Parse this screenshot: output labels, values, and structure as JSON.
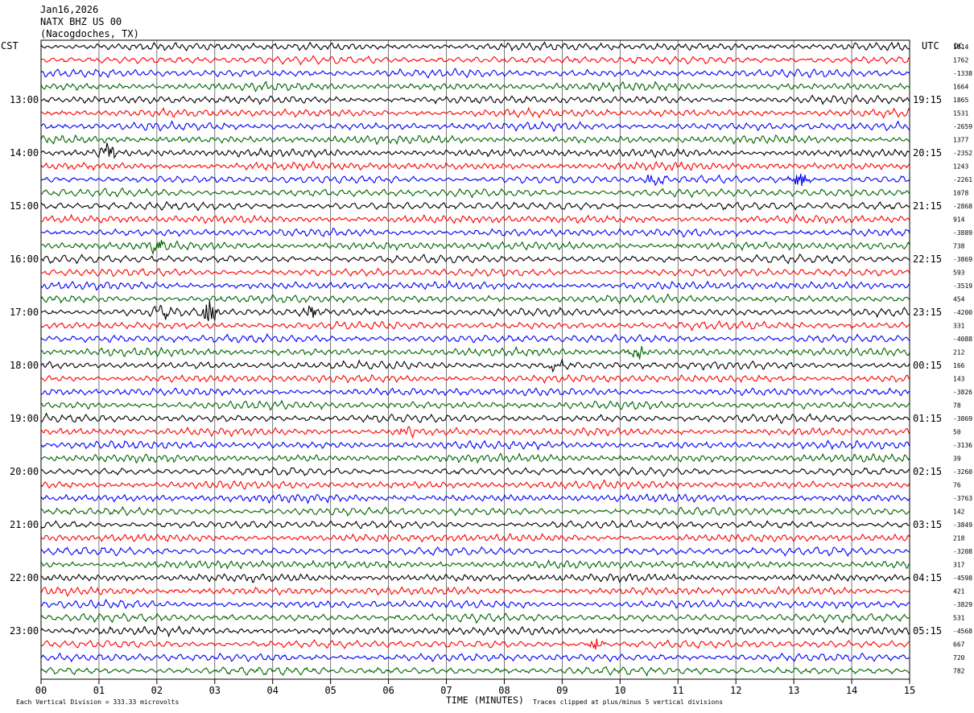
{
  "header": {
    "date": "Jan16,2026",
    "station": "NATX BHZ US 00",
    "location": "(Nacogdoches, TX)"
  },
  "chart_data": {
    "type": "line",
    "title": "",
    "left_axis_label": "CST",
    "right_axis_label": "UTC",
    "dc_label": "DC",
    "xlabel": "TIME (MINUTES)",
    "xlim": [
      0,
      15
    ],
    "x_ticks": [
      "00",
      "01",
      "02",
      "03",
      "04",
      "05",
      "06",
      "07",
      "08",
      "09",
      "10",
      "11",
      "12",
      "13",
      "14",
      "15"
    ],
    "grid": true,
    "trace_count": 48,
    "trace_colors": [
      "#000000",
      "#ff0000",
      "#0000ff",
      "#006400"
    ],
    "cst_hour_labels": [
      "13:00",
      "14:00",
      "15:00",
      "16:00",
      "17:00",
      "18:00",
      "19:00",
      "20:00",
      "21:00",
      "22:00",
      "23:00"
    ],
    "utc_hour_labels": [
      "19:15",
      "20:15",
      "21:15",
      "22:15",
      "23:15",
      "00:15",
      "01:15",
      "02:15",
      "03:15",
      "04:15",
      "05:15"
    ],
    "dc_offsets": [
      "1814",
      "1762",
      "-1338",
      "1664",
      "1865",
      "1531",
      "-2659",
      "1377",
      "-2352",
      "1243",
      "-2261",
      "1078",
      "-2868",
      "914",
      "-3889",
      "738",
      "-3869",
      "593",
      "-3519",
      "454",
      "-4200",
      "331",
      "-4088",
      "212",
      "166",
      "143",
      "-3826",
      "78",
      "-3869",
      "50",
      "-3136",
      "39",
      "-3260",
      "76",
      "-3763",
      "142",
      "-3849",
      "218",
      "-3208",
      "317",
      "-4598",
      "421",
      "-3829",
      "531",
      "-4568",
      "667",
      "720",
      "782"
    ],
    "events": [
      {
        "trace": 8,
        "minute": 1.15,
        "amplitude": 9
      },
      {
        "trace": 10,
        "minute": 10.6,
        "amplitude": 7
      },
      {
        "trace": 10,
        "minute": 13.1,
        "amplitude": 6
      },
      {
        "trace": 15,
        "minute": 2.0,
        "amplitude": 6
      },
      {
        "trace": 20,
        "minute": 2.1,
        "amplitude": 7
      },
      {
        "trace": 20,
        "minute": 2.9,
        "amplitude": 11
      },
      {
        "trace": 20,
        "minute": 4.7,
        "amplitude": 6
      },
      {
        "trace": 23,
        "minute": 10.3,
        "amplitude": 6
      },
      {
        "trace": 24,
        "minute": 8.9,
        "amplitude": 6
      },
      {
        "trace": 29,
        "minute": 6.3,
        "amplitude": 5
      },
      {
        "trace": 45,
        "minute": 9.6,
        "amplitude": 5
      }
    ],
    "footer_left": "Each Vertical Division =  333.33 microvolts",
    "footer_right": "Traces clipped at plus/minus 5 vertical divisions"
  }
}
